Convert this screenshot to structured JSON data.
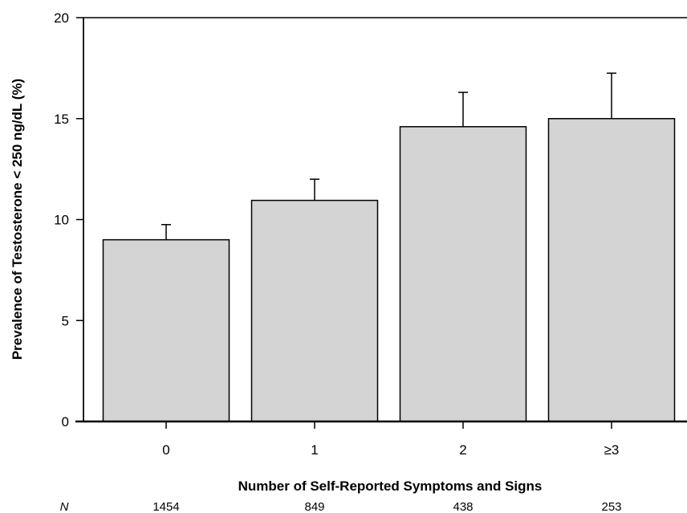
{
  "chart_data": {
    "type": "bar",
    "categories": [
      "0",
      "1",
      "2",
      "≥3"
    ],
    "values": [
      9.0,
      10.95,
      14.6,
      15.0
    ],
    "error_upper": [
      9.75,
      12.0,
      16.3,
      17.25
    ],
    "ylabel": "Prevalence of Testosterone < 250 ng/dL (%)",
    "xlabel": "Number of Self-Reported Symptoms and Signs",
    "ylim": [
      0,
      20
    ],
    "yticks": [
      0,
      5,
      10,
      15,
      20
    ],
    "n_label": "N",
    "n_values": [
      "1454",
      "849",
      "438",
      "253"
    ],
    "bar_color": "#d4d4d4",
    "grid": false,
    "legend": "none"
  }
}
